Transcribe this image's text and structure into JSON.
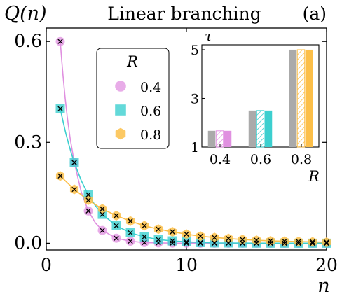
{
  "chart_data": [
    {
      "type": "line",
      "title": "Linear branching",
      "panel_label": "(a)",
      "ylabel": "Q(n)",
      "xlabel": "n",
      "xlim": [
        0,
        20
      ],
      "ylim": [
        -0.02,
        0.64
      ],
      "xticks": [
        0,
        10,
        20
      ],
      "yticks": [
        0.0,
        0.3,
        0.6
      ],
      "xtick_labels": [
        "0",
        "10",
        "20"
      ],
      "ytick_labels": [
        "0.0",
        "0.3",
        "0.6"
      ],
      "legend": {
        "title": "R",
        "placement": "upper-left-center"
      },
      "x": [
        1,
        2,
        3,
        4,
        5,
        6,
        7,
        8,
        9,
        10,
        11,
        12,
        13,
        14,
        15,
        16,
        17,
        18,
        19,
        20
      ],
      "series": [
        {
          "name": "0.4",
          "color": "#e090e0",
          "marker": "circle",
          "values": [
            0.6,
            0.24,
            0.096,
            0.038,
            0.015,
            0.006,
            0.002,
            0.001,
            0.0004,
            0.0002,
            0.0001,
            0,
            0,
            0,
            0,
            0,
            0,
            0,
            0,
            0
          ],
          "theory_line_x": [
            1,
            1.1,
            1.2,
            1.35,
            1.5,
            1.7,
            2,
            2.5,
            3,
            3.5,
            4,
            5,
            6,
            7,
            8,
            9,
            10,
            12,
            14,
            16,
            18,
            20
          ],
          "theory_line_values": [
            0.6,
            0.546,
            0.497,
            0.431,
            0.375,
            0.313,
            0.24,
            0.152,
            0.096,
            0.061,
            0.038,
            0.015,
            0.006,
            0.002,
            0.001,
            0.0004,
            0.0002,
            0,
            0,
            0,
            0,
            0
          ]
        },
        {
          "name": "0.6",
          "color": "#3ccfcf",
          "marker": "square",
          "values": [
            0.4,
            0.24,
            0.144,
            0.086,
            0.052,
            0.031,
            0.019,
            0.011,
            0.007,
            0.004,
            0.002,
            0.001,
            0.0009,
            0.0005,
            0.0003,
            0.0002,
            0.0001,
            0,
            0,
            0
          ],
          "theory_line_x": [
            1,
            1.2,
            1.4,
            1.6,
            1.8,
            2,
            2.5,
            3,
            3.5,
            4,
            5,
            6,
            7,
            8,
            9,
            10,
            12,
            14,
            16,
            18,
            20
          ],
          "theory_line_values": [
            0.4,
            0.362,
            0.326,
            0.295,
            0.266,
            0.24,
            0.186,
            0.144,
            0.112,
            0.086,
            0.052,
            0.031,
            0.019,
            0.011,
            0.007,
            0.004,
            0.001,
            0.0005,
            0.0002,
            0.0001,
            0
          ]
        },
        {
          "name": "0.8",
          "color": "#fcbf49",
          "marker": "hexagon",
          "values": [
            0.2,
            0.16,
            0.128,
            0.102,
            0.082,
            0.066,
            0.052,
            0.042,
            0.034,
            0.027,
            0.021,
            0.017,
            0.014,
            0.011,
            0.009,
            0.007,
            0.006,
            0.005,
            0.004,
            0.003
          ],
          "theory_line_x": [
            1,
            2,
            3,
            4,
            5,
            6,
            7,
            8,
            9,
            10,
            11,
            12,
            13,
            14,
            15,
            16,
            17,
            18,
            19,
            20
          ],
          "theory_line_values": [
            0.2,
            0.16,
            0.128,
            0.102,
            0.082,
            0.066,
            0.052,
            0.042,
            0.034,
            0.027,
            0.021,
            0.017,
            0.014,
            0.011,
            0.009,
            0.007,
            0.006,
            0.005,
            0.004,
            0.003
          ]
        }
      ],
      "simulation_marker": "x"
    },
    {
      "type": "bar",
      "role": "inset",
      "ylabel": "τ",
      "xlabel": "R",
      "categories": [
        "0.4",
        "0.6",
        "0.8"
      ],
      "ylim": [
        1,
        5.2
      ],
      "yticks": [
        1,
        3,
        5
      ],
      "ytick_labels": [
        "1",
        "3",
        "5"
      ],
      "bar_series": [
        {
          "style": "gray-solid",
          "color": "#aaaaaa",
          "values": [
            1.667,
            2.5,
            5.0
          ]
        },
        {
          "style": "hatched",
          "values": [
            1.667,
            2.5,
            5.0
          ]
        },
        {
          "style": "colored-solid",
          "values": [
            1.667,
            2.5,
            5.0
          ]
        }
      ],
      "category_colors": [
        "#e090e0",
        "#3ccfcf",
        "#fcbf49"
      ]
    }
  ]
}
